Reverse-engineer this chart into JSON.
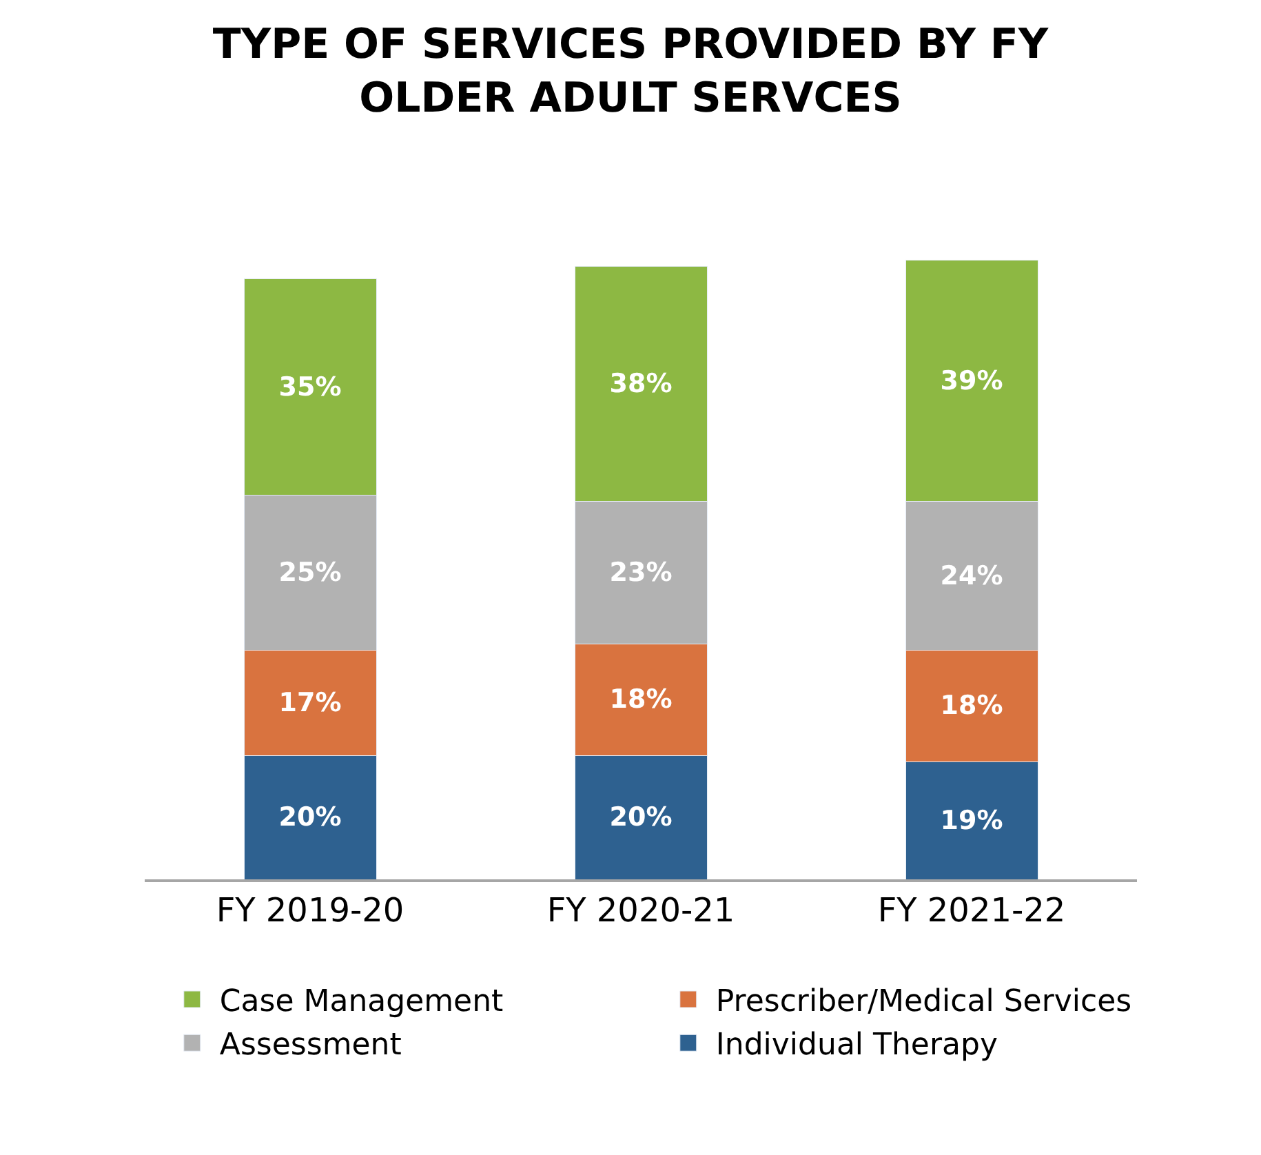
{
  "chart_data": {
    "type": "bar",
    "stacked": true,
    "title": "TYPE OF SERVICES PROVIDED BY FY\nOLDER ADULT SERVCES",
    "categories": [
      "FY 2019-20",
      "FY 2020-21",
      "FY 2021-22"
    ],
    "series": [
      {
        "name": "Individual Therapy",
        "color": "#2e6190",
        "values": [
          20,
          20,
          19
        ],
        "value_labels": [
          "20%",
          "20%",
          "19%"
        ]
      },
      {
        "name": "Prescriber/Medical Services",
        "color": "#d9733f",
        "values": [
          17,
          18,
          18
        ],
        "value_labels": [
          "17%",
          "18%",
          "18%"
        ]
      },
      {
        "name": "Assessment",
        "color": "#b2b2b2",
        "values": [
          25,
          23,
          24
        ],
        "value_labels": [
          "25%",
          "23%",
          "24%"
        ]
      },
      {
        "name": "Case Management",
        "color": "#8db843",
        "values": [
          35,
          38,
          39
        ],
        "value_labels": [
          "35%",
          "38%",
          "39%"
        ]
      }
    ],
    "legend": "bottom"
  }
}
